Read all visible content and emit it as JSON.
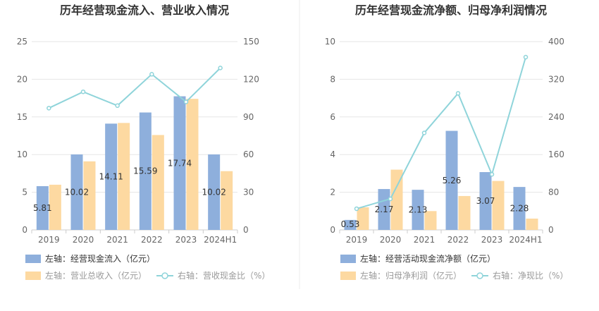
{
  "chart_data": [
    {
      "type": "bar+line",
      "title": "历年经营现金流入、营业收入情况",
      "categories": [
        "2019",
        "2020",
        "2021",
        "2022",
        "2023",
        "2024H1"
      ],
      "left_axis": {
        "min": 0,
        "max": 25,
        "ticks": [
          "0",
          "5",
          "10",
          "15",
          "20",
          "25"
        ]
      },
      "right_axis": {
        "min": 0,
        "max": 150,
        "ticks": [
          "0",
          "30",
          "60",
          "90",
          "120",
          "150"
        ]
      },
      "series": [
        {
          "name": "左轴：经营现金流入（亿元）",
          "kind": "bar",
          "axis": "left",
          "color": "#8eafdc",
          "values": [
            5.81,
            10.02,
            14.11,
            15.59,
            17.74,
            10.02
          ],
          "labels": [
            "5.81",
            "10.02",
            "14.11",
            "15.59",
            "17.74",
            "10.02"
          ]
        },
        {
          "name": "左轴：营业总收入（亿元）",
          "kind": "bar",
          "axis": "left",
          "color": "#fdd9a1",
          "values": [
            6.0,
            9.1,
            14.2,
            12.6,
            17.4,
            7.8
          ]
        },
        {
          "name": "右轴：营收现金比（%）",
          "kind": "line",
          "axis": "right",
          "color": "#8fd4da",
          "values": [
            97,
            110,
            99,
            124,
            102,
            129
          ]
        }
      ],
      "legend": "bottom-left",
      "grid": true
    },
    {
      "type": "bar+line",
      "title": "历年经营现金流净额、归母净利润情况",
      "categories": [
        "2019",
        "2020",
        "2021",
        "2022",
        "2023",
        "2024H1"
      ],
      "left_axis": {
        "min": 0,
        "max": 10,
        "ticks": [
          "0",
          "2",
          "4",
          "6",
          "8",
          "10"
        ]
      },
      "right_axis": {
        "min": 0,
        "max": 400,
        "ticks": [
          "0",
          "80",
          "160",
          "240",
          "320",
          "400"
        ]
      },
      "series": [
        {
          "name": "左轴：经营活动现金流净额（亿元）",
          "kind": "bar",
          "axis": "left",
          "color": "#8eafdc",
          "values": [
            0.53,
            2.17,
            2.13,
            5.26,
            3.07,
            2.28
          ],
          "labels": [
            "0.53",
            "2.17",
            "2.13",
            "5.26",
            "3.07",
            "2.28"
          ]
        },
        {
          "name": "左轴：归母净利润（亿元）",
          "kind": "bar",
          "axis": "left",
          "color": "#fdd9a1",
          "values": [
            1.2,
            3.2,
            1.0,
            1.8,
            2.6,
            0.6
          ]
        },
        {
          "name": "右轴：净现比（%）",
          "kind": "line",
          "axis": "right",
          "color": "#8fd4da",
          "values": [
            45,
            66,
            206,
            290,
            118,
            367
          ]
        }
      ],
      "legend": "bottom-left",
      "grid": true
    }
  ]
}
